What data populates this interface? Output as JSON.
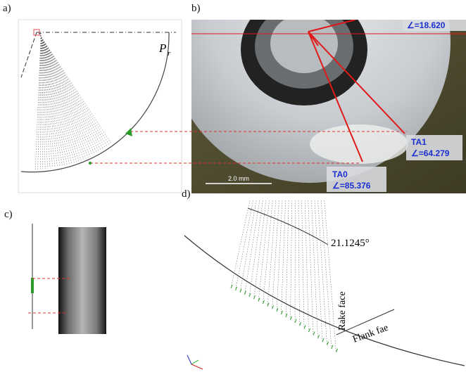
{
  "panels": {
    "a": {
      "label": "a)",
      "plane": {
        "symbol": "P",
        "subscript": "r"
      }
    },
    "b": {
      "label": "b)",
      "angle_top": "∠=18.620",
      "ta1": {
        "name": "TA1",
        "angle": "∠=64.279"
      },
      "ta0": {
        "name": "TA0",
        "angle": "∠=85.376"
      },
      "scale_bar": "2.0 mm"
    },
    "c": {
      "label": "c)"
    },
    "d": {
      "label": "d)",
      "angle": "21.1245°",
      "rake_face": "Rake face",
      "flank_face": "Flank fae"
    }
  }
}
